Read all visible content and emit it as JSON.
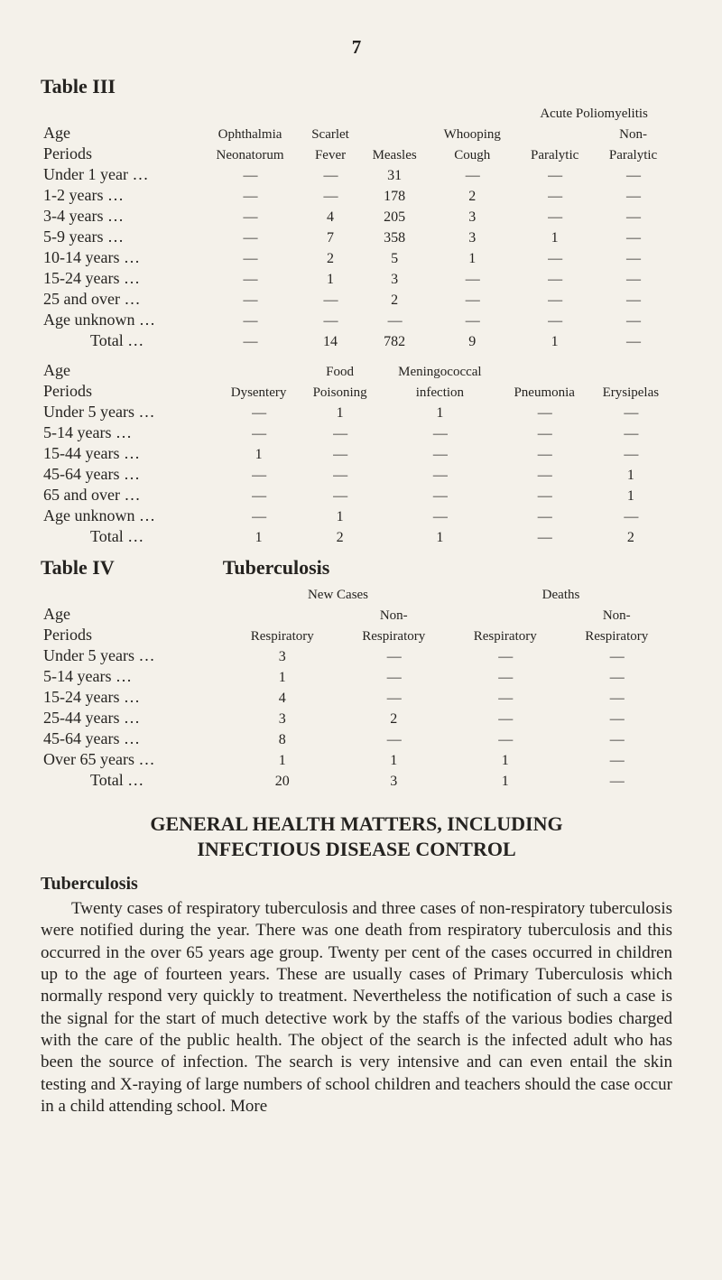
{
  "page_number": "7",
  "table3": {
    "label": "Table III",
    "header_top": {
      "age": "Age",
      "ophth": "Ophthalmia",
      "scarlet": "Scarlet",
      "measles": "",
      "whoop": "Whooping",
      "polio_span": "Acute Poliomyelitis",
      "polio_non": "Non-"
    },
    "header_bot": {
      "periods": "Periods",
      "neon": "Neonatorum",
      "fever": "Fever",
      "measles": "Measles",
      "cough": "Cough",
      "paralytic": "Paralytic",
      "paralytic2": "Paralytic"
    },
    "rows": [
      {
        "label": "Under 1 year",
        "c": [
          "—",
          "—",
          "31",
          "—",
          "—",
          "—"
        ]
      },
      {
        "label": "1-2 years",
        "c": [
          "—",
          "—",
          "178",
          "2",
          "—",
          "—"
        ]
      },
      {
        "label": "3-4 years",
        "c": [
          "—",
          "4",
          "205",
          "3",
          "—",
          "—"
        ]
      },
      {
        "label": "5-9 years",
        "c": [
          "—",
          "7",
          "358",
          "3",
          "1",
          "—"
        ]
      },
      {
        "label": "10-14 years",
        "c": [
          "—",
          "2",
          "5",
          "1",
          "—",
          "—"
        ]
      },
      {
        "label": "15-24 years",
        "c": [
          "—",
          "1",
          "3",
          "—",
          "—",
          "—"
        ]
      },
      {
        "label": "25 and over",
        "c": [
          "—",
          "—",
          "2",
          "—",
          "—",
          "—"
        ]
      },
      {
        "label": "Age unknown",
        "c": [
          "—",
          "—",
          "—",
          "—",
          "—",
          "—"
        ]
      }
    ],
    "total": {
      "label": "Total",
      "c": [
        "—",
        "14",
        "782",
        "9",
        "1",
        "—"
      ]
    }
  },
  "table3b": {
    "header_top": {
      "age": "Age",
      "dys": "",
      "food": "Food",
      "mening": "Meningococcal",
      "pneu": "",
      "erys": ""
    },
    "header_bot": {
      "periods": "Periods",
      "dys": "Dysentery",
      "poison": "Poisoning",
      "infect": "infection",
      "pneu": "Pneumonia",
      "erys": "Erysipelas"
    },
    "rows": [
      {
        "label": "Under 5 years",
        "c": [
          "—",
          "1",
          "1",
          "—",
          "—"
        ]
      },
      {
        "label": "5-14 years",
        "c": [
          "—",
          "—",
          "—",
          "—",
          "—"
        ]
      },
      {
        "label": "15-44 years",
        "c": [
          "1",
          "—",
          "—",
          "—",
          "—"
        ]
      },
      {
        "label": "45-64 years",
        "c": [
          "—",
          "—",
          "—",
          "—",
          "1"
        ]
      },
      {
        "label": "65 and over",
        "c": [
          "—",
          "—",
          "—",
          "—",
          "1"
        ]
      },
      {
        "label": "Age unknown",
        "c": [
          "—",
          "1",
          "—",
          "—",
          "—"
        ]
      }
    ],
    "total": {
      "label": "Total",
      "c": [
        "1",
        "2",
        "1",
        "—",
        "2"
      ]
    }
  },
  "table4": {
    "label": "Table IV",
    "title": "Tuberculosis",
    "groupheads": {
      "new": "New Cases",
      "deaths": "Deaths"
    },
    "subhead": {
      "age": "Age",
      "non": "Non-",
      "non2": "Non-"
    },
    "subhead2": {
      "periods": "Periods",
      "resp": "Respiratory",
      "resp2": "Respiratory",
      "resp3": "Respiratory",
      "resp4": "Respiratory"
    },
    "rows": [
      {
        "label": "Under 5 years",
        "c": [
          "3",
          "—",
          "—",
          "—"
        ]
      },
      {
        "label": "5-14 years",
        "c": [
          "1",
          "—",
          "—",
          "—"
        ]
      },
      {
        "label": "15-24 years",
        "c": [
          "4",
          "—",
          "—",
          "—"
        ]
      },
      {
        "label": "25-44 years",
        "c": [
          "3",
          "2",
          "—",
          "—"
        ]
      },
      {
        "label": "45-64 years",
        "c": [
          "8",
          "—",
          "—",
          "—"
        ]
      },
      {
        "label": "Over 65 years",
        "c": [
          "1",
          "1",
          "1",
          "—"
        ]
      }
    ],
    "total": {
      "label": "Total",
      "c": [
        "20",
        "3",
        "1",
        "—"
      ]
    }
  },
  "section": {
    "title": "GENERAL HEALTH MATTERS, INCLUDING",
    "sub": "INFECTIOUS DISEASE CONTROL"
  },
  "para": {
    "head": "Tuberculosis",
    "body": "Twenty cases of respiratory tuberculosis and three cases of non-respiratory tuberculosis were notified during the year. There was one death from respiratory tuberculosis and this occurred in the over 65 years age group. Twenty per cent of the cases occurred in children up to the age of fourteen years. These are usually cases of Primary Tuberculosis which normally respond very quickly to treatment. Nevertheless the notification of such a case is the signal for the start of much detective work by the staffs of the various bodies charged with the care of the public health. The object of the search is the infected adult who has been the source of infection. The search is very intensive and can even entail the skin testing and X-raying of large numbers of school children and teachers should the case occur in a child attending school. More"
  },
  "dots": "…"
}
